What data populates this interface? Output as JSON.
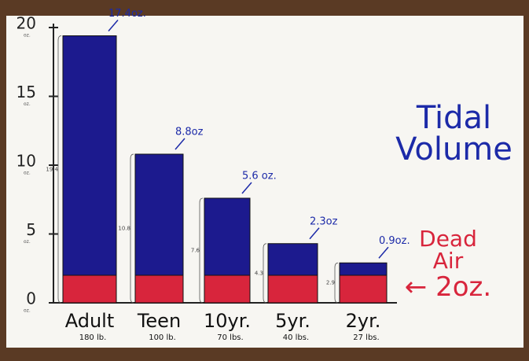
{
  "chart_data": {
    "type": "stacked_bar",
    "title": "Tidal Volume",
    "categories": [
      "Adult",
      "Teen",
      "10yr.",
      "5yr.",
      "2yr."
    ],
    "subcategories": [
      "180 lb.",
      "100 lb.",
      "70 lbs.",
      "40 lbs.",
      "27 lbs."
    ],
    "series": [
      {
        "name": "Dead Air",
        "color": "#d8253c",
        "values": [
          2,
          2,
          2,
          2,
          2
        ]
      },
      {
        "name": "Tidal Volume",
        "color": "#1c1a8e",
        "values": [
          17.4,
          8.8,
          5.6,
          2.3,
          0.9
        ],
        "value_labels": [
          "17.4oz.",
          "8.8oz",
          "5.6 oz.",
          "2.3oz",
          "0.9oz."
        ]
      }
    ],
    "bracket_labels": [
      "19.4",
      "10.8",
      "7.6",
      "4.3",
      "2.9"
    ],
    "annotation": "← 2oz.",
    "y_unit": "oz.",
    "ylim": [
      0,
      20
    ],
    "yticks": [
      0,
      5,
      10,
      15,
      20
    ]
  }
}
